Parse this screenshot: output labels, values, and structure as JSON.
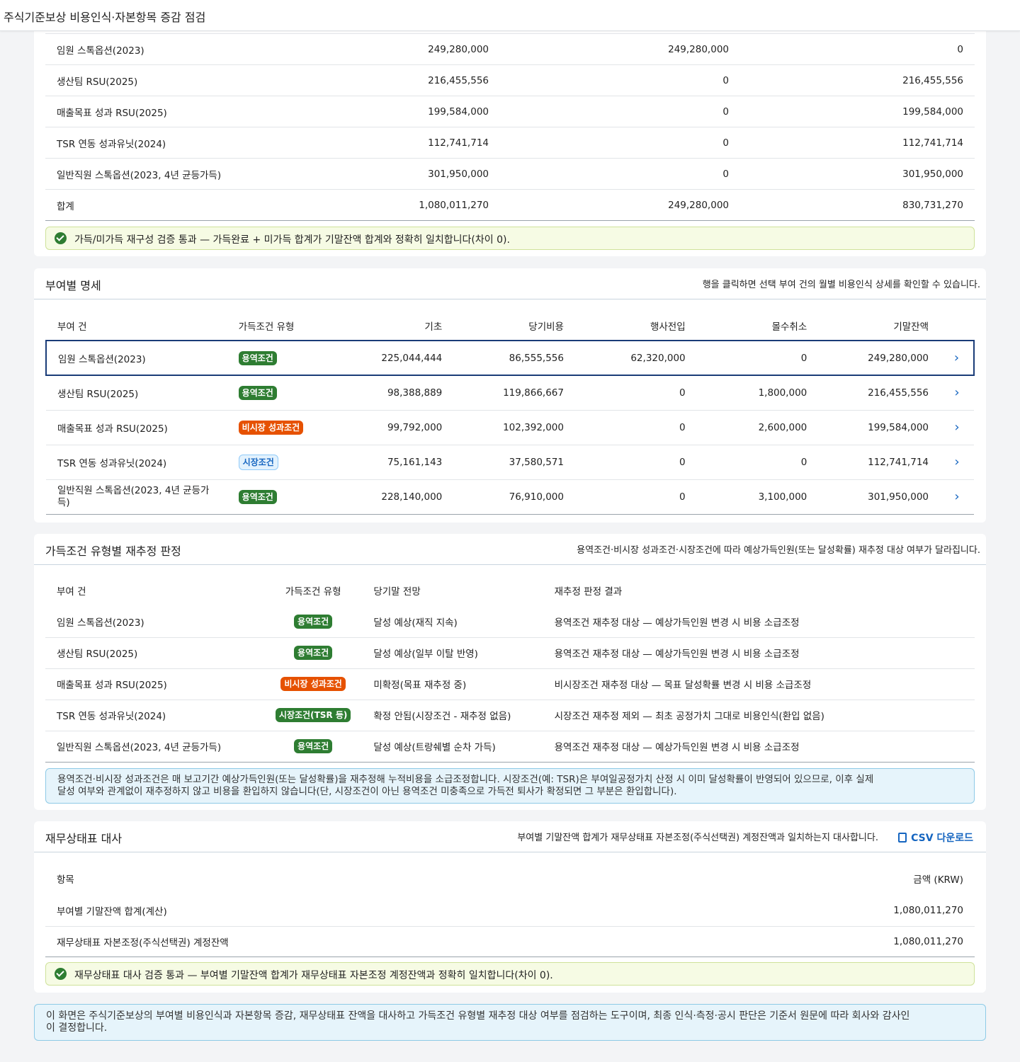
{
  "window_title": "주식기준보상 비용인식·자본항목 증감 점검",
  "vesting_summary": {
    "rows": [
      {
        "name": "임원 스톡옵션(2023)",
        "total": "249,280,000",
        "vested": "249,280,000",
        "unvested": "0"
      },
      {
        "name": "생산팀 RSU(2025)",
        "total": "216,455,556",
        "vested": "0",
        "unvested": "216,455,556"
      },
      {
        "name": "매출목표 성과 RSU(2025)",
        "total": "199,584,000",
        "vested": "0",
        "unvested": "199,584,000"
      },
      {
        "name": "TSR 연동 성과유닛(2024)",
        "total": "112,741,714",
        "vested": "0",
        "unvested": "112,741,714"
      },
      {
        "name": "일반직원 스톡옵션(2023, 4년 균등가득)",
        "total": "301,950,000",
        "vested": "0",
        "unvested": "301,950,000"
      },
      {
        "name": "합계",
        "total": "1,080,011,270",
        "vested": "249,280,000",
        "unvested": "830,731,270"
      }
    ],
    "banner": "가득/미가득 재구성 검증 통과 — 가득완료 + 미가득 합계가 기말잔액 합계와 정확히 일치합니다(차이 0)."
  },
  "grant_detail": {
    "title": "부여별 명세",
    "desc": "행을 클릭하면 선택 부여 건의 월별 비용인식 상세를 확인할 수 있습니다.",
    "headers": {
      "grant": "부여 건",
      "type": "가득조건 유형",
      "opening": "기초",
      "expense": "당기비용",
      "exercise": "행사전입",
      "forfeit": "몰수취소",
      "closing": "기말잔액"
    },
    "rows": [
      {
        "name": "임원 스톡옵션(2023)",
        "type": "용역조건",
        "opening": "225,044,444",
        "expense": "86,555,556",
        "exercise": "62,320,000",
        "forfeit": "0",
        "closing": "249,280,000"
      },
      {
        "name": "생산팀 RSU(2025)",
        "type": "용역조건",
        "opening": "98,388,889",
        "expense": "119,866,667",
        "exercise": "0",
        "forfeit": "1,800,000",
        "closing": "216,455,556"
      },
      {
        "name": "매출목표 성과 RSU(2025)",
        "type": "비시장 성과조건",
        "opening": "99,792,000",
        "expense": "102,392,000",
        "exercise": "0",
        "forfeit": "2,600,000",
        "closing": "199,584,000"
      },
      {
        "name": "TSR 연동 성과유닛(2024)",
        "type": "시장조건",
        "opening": "75,161,143",
        "expense": "37,580,571",
        "exercise": "0",
        "forfeit": "0",
        "closing": "112,741,714"
      },
      {
        "name_line1": "일반직원 스톡옵션(2023, 4년 균등가",
        "name_line2": "득)",
        "type": "용역조건",
        "opening": "228,140,000",
        "expense": "76,910,000",
        "exercise": "0",
        "forfeit": "3,100,000",
        "closing": "301,950,000"
      }
    ]
  },
  "reestimation": {
    "title": "가득조건 유형별 재추정 판정",
    "desc": "용역조건·비시장 성과조건·시장조건에 따라 예상가득인원(또는 달성확률) 재추정 대상 여부가 달라집니다.",
    "headers": {
      "grant": "부여 건",
      "type": "가득조건 유형",
      "outlook": "당기말 전망",
      "result": "재추정 판정 결과"
    },
    "rows": [
      {
        "name": "임원 스톡옵션(2023)",
        "type": "용역조건",
        "outlook": "달성 예상(재직 지속)",
        "result": "용역조건 재추정 대상 — 예상가득인원 변경 시 비용 소급조정"
      },
      {
        "name": "생산팀 RSU(2025)",
        "type": "용역조건",
        "outlook": "달성 예상(일부 이탈 반영)",
        "result": "용역조건 재추정 대상 — 예상가득인원 변경 시 비용 소급조정"
      },
      {
        "name": "매출목표 성과 RSU(2025)",
        "type": "비시장 성과조건",
        "outlook": "미확정(목표 재추정 중)",
        "result": "비시장조건 재추정 대상 — 목표 달성확률 변경 시 비용 소급조정"
      },
      {
        "name": "TSR 연동 성과유닛(2024)",
        "type": "시장조건(TSR 등)",
        "outlook": "확정 안됨(시장조건 - 재추정 없음)",
        "result": "시장조건 재추정 제외 — 최초 공정가치 그대로 비용인식(환입 없음)"
      },
      {
        "name": "일반직원 스톡옵션(2023, 4년 균등가득)",
        "type": "용역조건",
        "outlook": "달성 예상(트랑쉐별 순차 가득)",
        "result": "용역조건 재추정 대상 — 예상가득인원 변경 시 비용 소급조정"
      }
    ],
    "note_line1": "용역조건·비시장 성과조건은 매 보고기간 예상가득인원(또는 달성확률)을 재추정해 누적비용을 소급조정합니다. 시장조건(예: TSR)은 부여일공정가치 산정 시 이미 달성확률이 반영되어 있으므로, 이후 실제",
    "note_line2": "달성 여부와 관계없이 재추정하지 않고 비용을 환입하지 않습니다(단, 시장조건이 아닌 용역조건 미충족으로 가득전 퇴사가 확정되면 그 부분은 환입합니다)."
  },
  "reconciliation": {
    "title": "재무상태표 대사",
    "desc": "부여별 기말잔액 합계가 재무상태표 자본조정(주식선택권) 계정잔액과 일치하는지 대사합니다.",
    "csv_label": "CSV 다운로드",
    "headers": {
      "item": "항목",
      "amount": "금액 (KRW)"
    },
    "rows": [
      {
        "item": "부여별 기말잔액 합계(계산)",
        "amount": "1,080,011,270"
      },
      {
        "item": "재무상태표 자본조정(주식선택권) 계정잔액",
        "amount": "1,080,011,270"
      }
    ],
    "banner": "재무상태표 대사 검증 통과 — 부여별 기말잔액 합계가 재무상태표 자본조정 계정잔액과 정확히 일치합니다(차이 0)."
  },
  "footer_note_line1": "이 화면은 주식기준보상의 부여별 비용인식과 자본항목 증감, 재무상태표 잔액을 대사하고 가득조건 유형별 재추정 대상 여부를 점검하는 도구이며, 최종 인식·측정·공시 판단은 기준서 원문에 따라 회사와 감사인",
  "footer_note_line2": "이 결정합니다."
}
